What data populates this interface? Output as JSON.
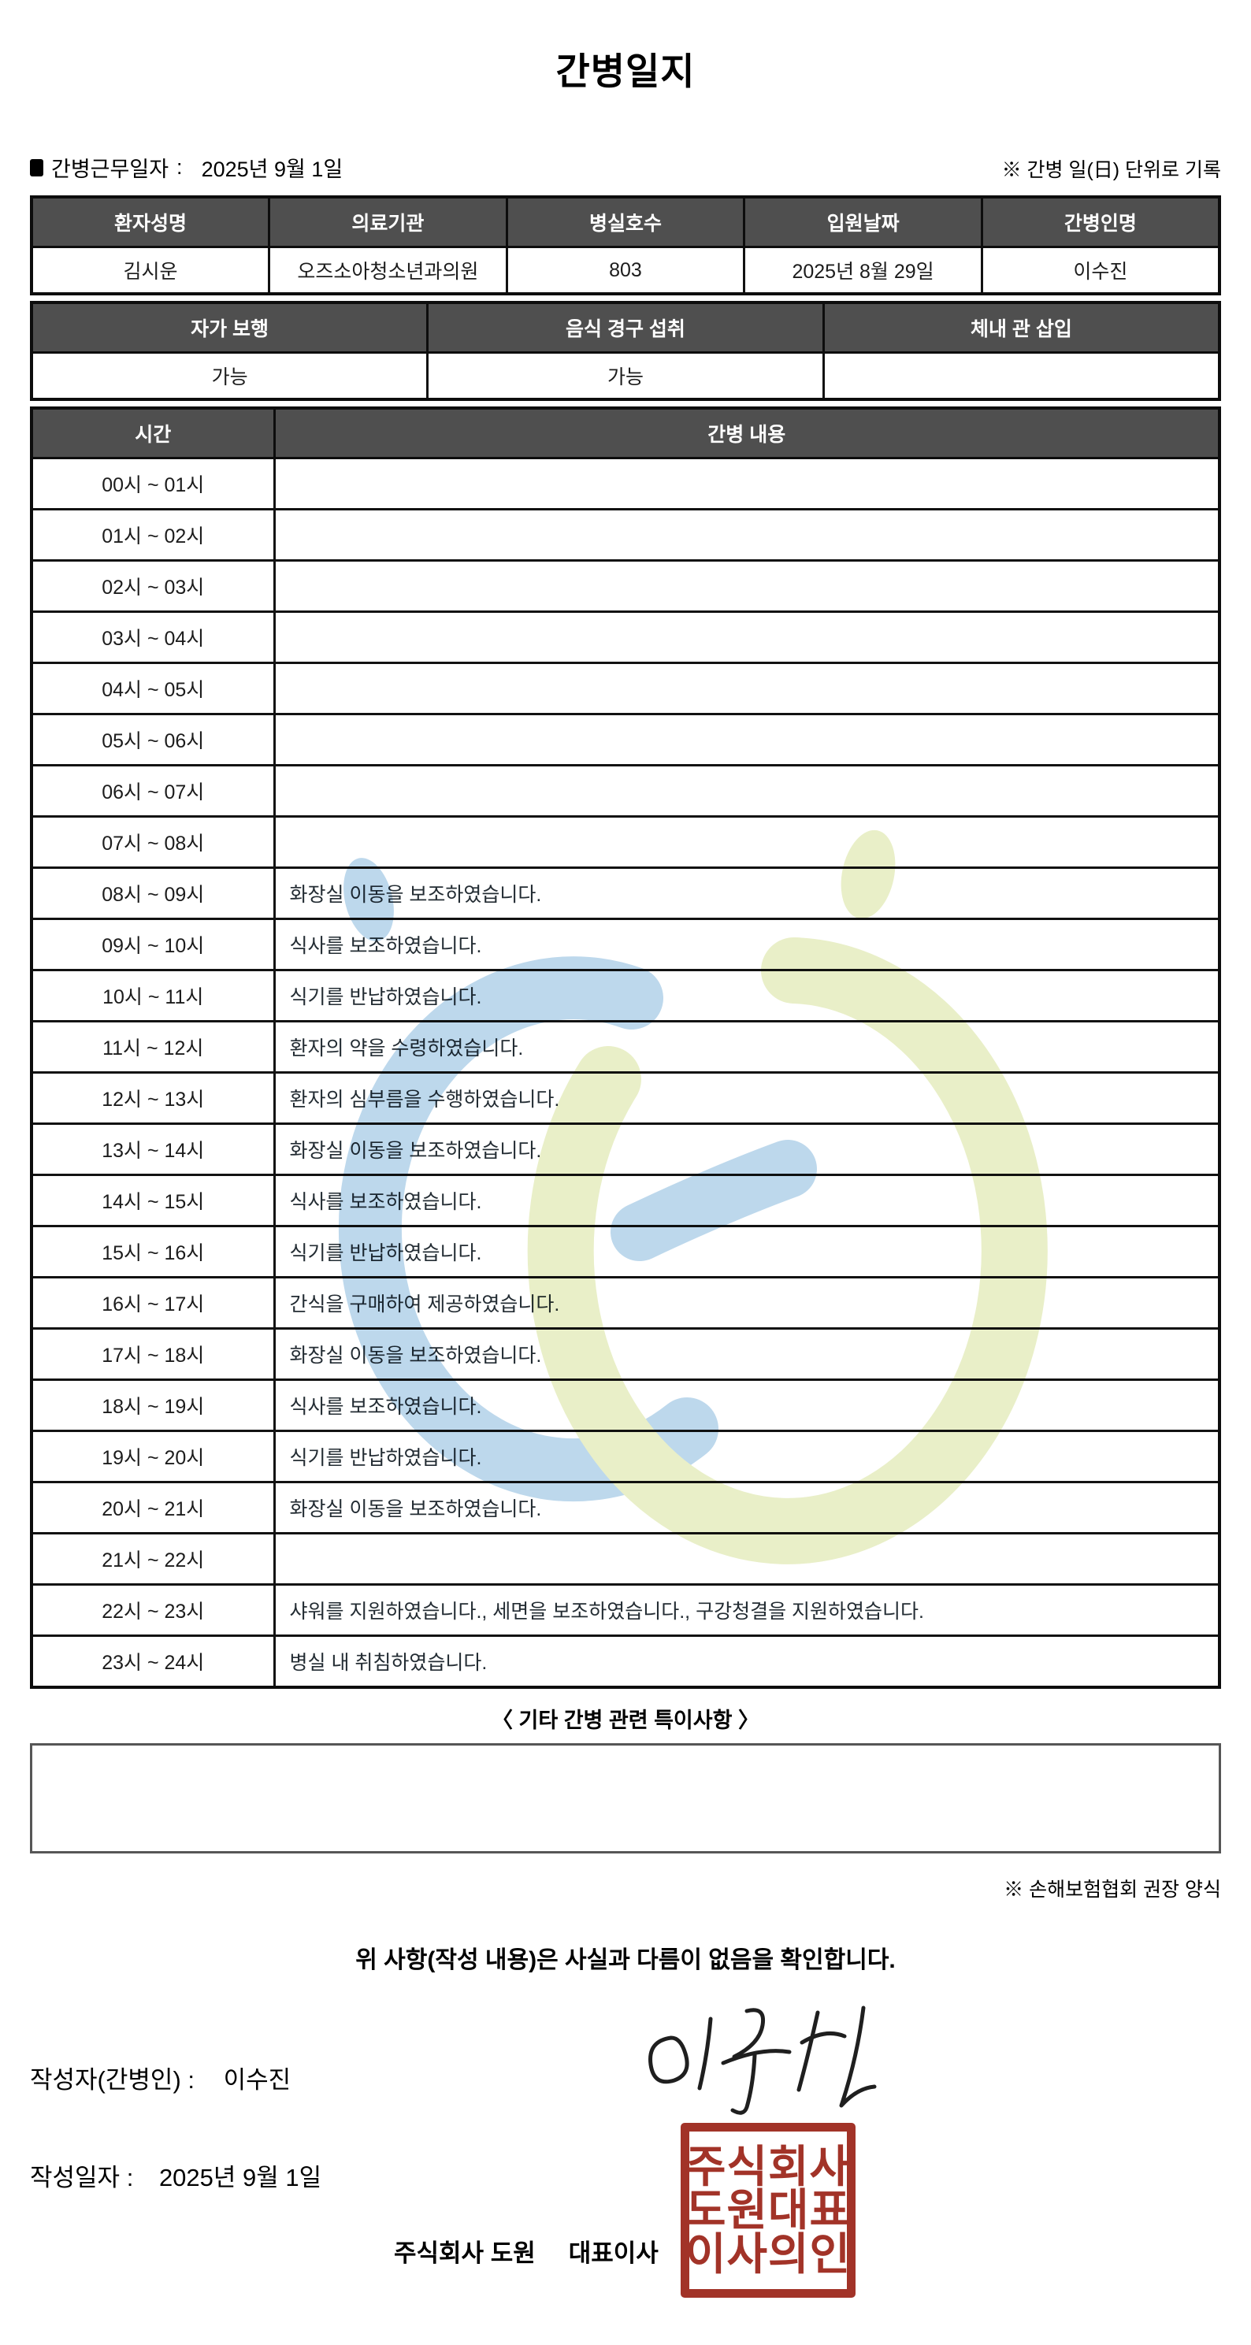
{
  "page": {
    "title": "간병일지"
  },
  "meta": {
    "work_date_label": "간병근무일자",
    "colon": ":",
    "work_date": "2025년 9월 1일",
    "unit_note": "※ 간병 일(日) 단위로 기록"
  },
  "patient_table": {
    "headers": [
      "환자성명",
      "의료기관",
      "병실호수",
      "입원날짜",
      "간병인명"
    ],
    "values": [
      "김시운",
      "오즈소아청소년과의원",
      "803",
      "2025년 8월 29일",
      "이수진"
    ]
  },
  "status_table": {
    "headers": [
      "자가 보행",
      "음식 경구 섭취",
      "체내 관 삽입"
    ],
    "values": [
      "가능",
      "가능",
      ""
    ]
  },
  "diary": {
    "time_header": "시간",
    "content_header": "간병 내용",
    "rows": [
      {
        "time": "00시 ~ 01시",
        "content": ""
      },
      {
        "time": "01시 ~ 02시",
        "content": ""
      },
      {
        "time": "02시 ~ 03시",
        "content": ""
      },
      {
        "time": "03시 ~ 04시",
        "content": ""
      },
      {
        "time": "04시 ~ 05시",
        "content": ""
      },
      {
        "time": "05시 ~ 06시",
        "content": ""
      },
      {
        "time": "06시 ~ 07시",
        "content": ""
      },
      {
        "time": "07시 ~ 08시",
        "content": ""
      },
      {
        "time": "08시 ~ 09시",
        "content": "화장실 이동을 보조하였습니다."
      },
      {
        "time": "09시 ~ 10시",
        "content": "식사를 보조하였습니다."
      },
      {
        "time": "10시 ~ 11시",
        "content": "식기를 반납하였습니다."
      },
      {
        "time": "11시 ~ 12시",
        "content": "환자의 약을 수령하였습니다."
      },
      {
        "time": "12시 ~ 13시",
        "content": "환자의 심부름을 수행하였습니다."
      },
      {
        "time": "13시 ~ 14시",
        "content": "화장실 이동을 보조하였습니다."
      },
      {
        "time": "14시 ~ 15시",
        "content": "식사를 보조하였습니다."
      },
      {
        "time": "15시 ~ 16시",
        "content": "식기를 반납하였습니다."
      },
      {
        "time": "16시 ~ 17시",
        "content": "간식을 구매하여 제공하였습니다."
      },
      {
        "time": "17시 ~ 18시",
        "content": "화장실 이동을 보조하였습니다."
      },
      {
        "time": "18시 ~ 19시",
        "content": "식사를 보조하였습니다."
      },
      {
        "time": "19시 ~ 20시",
        "content": "식기를 반납하였습니다."
      },
      {
        "time": "20시 ~ 21시",
        "content": "화장실 이동을 보조하였습니다."
      },
      {
        "time": "21시 ~ 22시",
        "content": ""
      },
      {
        "time": "22시 ~ 23시",
        "content": "샤워를 지원하였습니다., 세면을 보조하였습니다., 구강청결을 지원하였습니다."
      },
      {
        "time": "23시 ~ 24시",
        "content": "병실 내 취침하였습니다."
      }
    ]
  },
  "extras": {
    "title": "〈 기타 간병 관련 특이사항 〉",
    "box_content": "",
    "form_note": "※ 손해보험협회 권장 양식"
  },
  "confirmation": {
    "statement": "위 사항(작성 내용)은 사실과 다름이 없음을 확인합니다.",
    "writer_label": "작성자(간병인) :",
    "writer_name": "이수진",
    "date_label": "작성일자 :",
    "write_date": "2025년 9월 1일",
    "company_name": "주식회사 도원",
    "ceo_label": "대표이사",
    "stamp_lines": [
      "주식회사",
      "도원대표",
      "이사의인"
    ]
  },
  "colors": {
    "header_bg": "#4f4f4f",
    "stamp_red": "#a23328",
    "watermark_blue": "#bdd8ec",
    "watermark_green": "#e9efc8"
  }
}
